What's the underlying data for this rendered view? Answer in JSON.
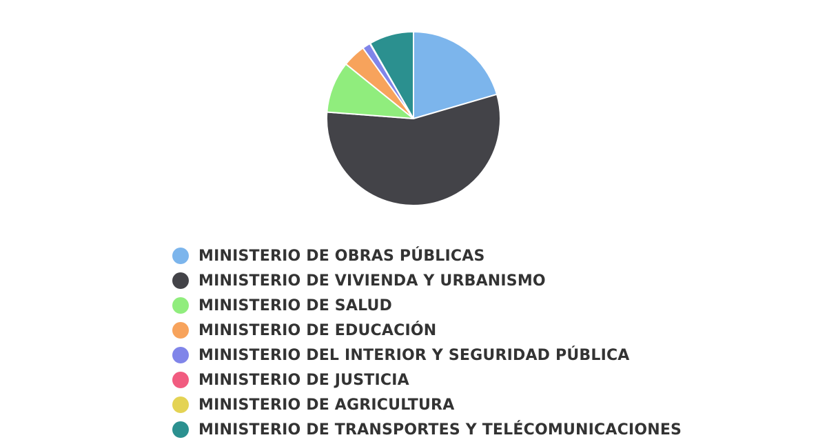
{
  "chart_data": {
    "type": "pie",
    "categories": [
      "MINISTERIO DE OBRAS PÚBLICAS",
      "MINISTERIO DE VIVIENDA Y URBANISMO",
      "MINISTERIO DE SALUD",
      "MINISTERIO DE EDUCACIÓN",
      "MINISTERIO DEL INTERIOR Y SEGURIDAD PÚBLICA",
      "MINISTERIO DE JUSTICIA",
      "MINISTERIO DE AGRICULTURA",
      "MINISTERIO DE TRANSPORTES Y TELÉCOMUNICACIONES"
    ],
    "values": [
      20.5,
      55.7,
      9.6,
      4.3,
      1.5,
      0.05,
      0.05,
      8.3
    ],
    "unit": "percent",
    "colors": [
      "#7cb5ec",
      "#434348",
      "#90ed7d",
      "#f7a35c",
      "#8085e9",
      "#f15c80",
      "#e4d354",
      "#2b908f"
    ],
    "start_angle_deg": 0,
    "direction": "clockwise",
    "legend_position": "bottom",
    "title": ""
  }
}
